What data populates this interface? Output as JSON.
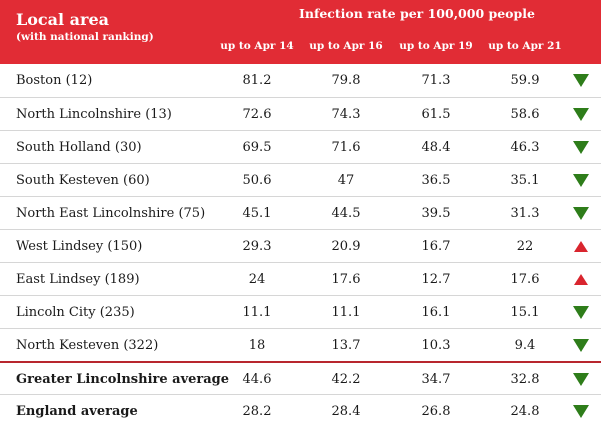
{
  "header": {
    "local_area": "Local area",
    "ranking_note": "(with national ranking)",
    "infection_rate": "Infection rate per 100,000 people",
    "columns": [
      "up to Apr 14",
      "up to Apr 16",
      "up to Apr 19",
      "up to Apr 21"
    ]
  },
  "colors": {
    "header_bg": "#e12c35",
    "down_arrow": "#2e7d1a",
    "up_arrow": "#d9252e",
    "divider_strong": "#b8262e"
  },
  "rows": [
    {
      "area": "Boston (12)",
      "values": [
        "81.2",
        "79.8",
        "71.3",
        "59.9"
      ],
      "trend": "down"
    },
    {
      "area": "North Lincolnshire (13)",
      "values": [
        "72.6",
        "74.3",
        "61.5",
        "58.6"
      ],
      "trend": "down"
    },
    {
      "area": "South Holland (30)",
      "values": [
        "69.5",
        "71.6",
        "48.4",
        "46.3"
      ],
      "trend": "down"
    },
    {
      "area": "South Kesteven (60)",
      "values": [
        "50.6",
        "47",
        "36.5",
        "35.1"
      ],
      "trend": "down"
    },
    {
      "area": "North East Lincolnshire (75)",
      "values": [
        "45.1",
        "44.5",
        "39.5",
        "31.3"
      ],
      "trend": "down"
    },
    {
      "area": "West Lindsey (150)",
      "values": [
        "29.3",
        "20.9",
        "16.7",
        "22"
      ],
      "trend": "up"
    },
    {
      "area": "East Lindsey (189)",
      "values": [
        "24",
        "17.6",
        "12.7",
        "17.6"
      ],
      "trend": "up"
    },
    {
      "area": "Lincoln City (235)",
      "values": [
        "11.1",
        "11.1",
        "16.1",
        "15.1"
      ],
      "trend": "down"
    },
    {
      "area": "North Kesteven (322)",
      "values": [
        "18",
        "13.7",
        "10.3",
        "9.4"
      ],
      "trend": "down"
    }
  ],
  "averages": [
    {
      "area": "Greater Lincolnshire average",
      "values": [
        "44.6",
        "42.2",
        "34.7",
        "32.8"
      ],
      "trend": "down"
    },
    {
      "area": "England average",
      "values": [
        "28.2",
        "28.4",
        "26.8",
        "24.8"
      ],
      "trend": "down"
    }
  ]
}
